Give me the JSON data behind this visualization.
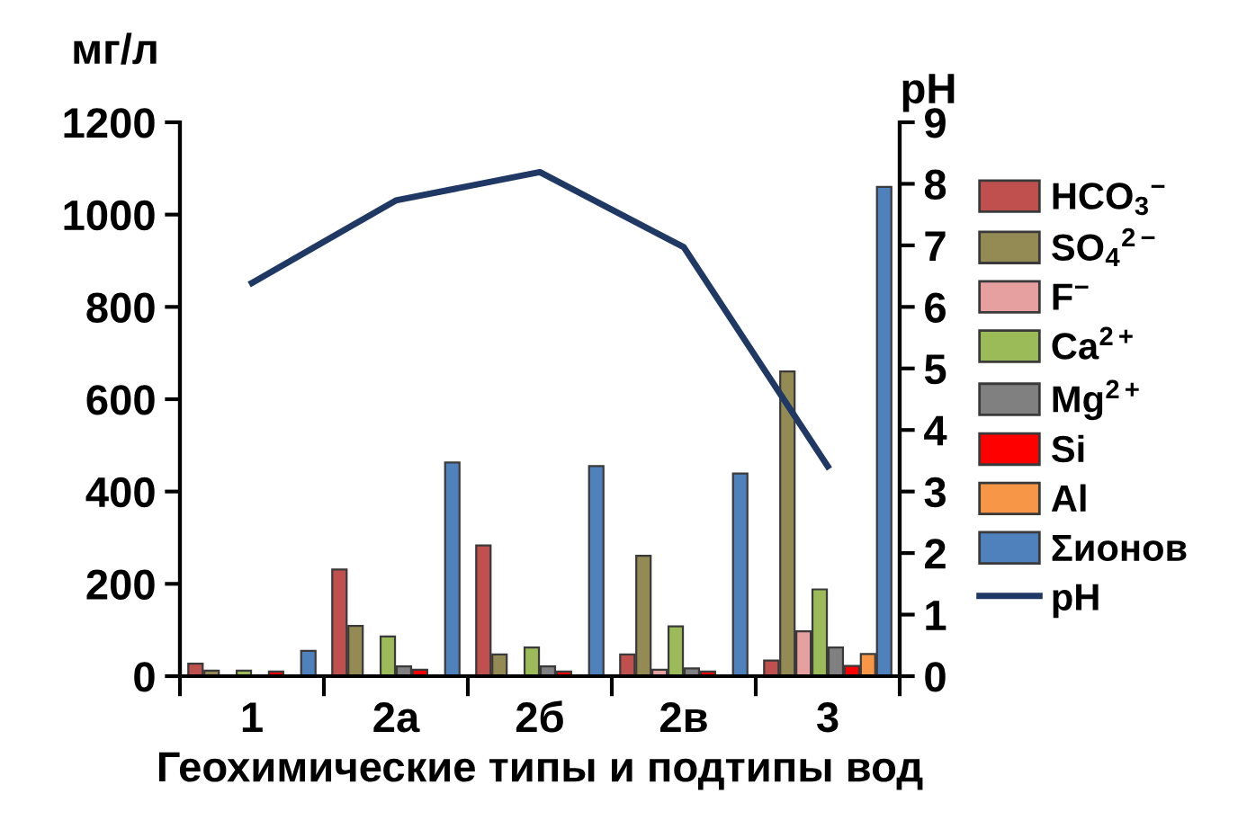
{
  "chart_data": {
    "type": "bar",
    "xlabel": "Геохимические типы и подтипы вод",
    "ylabel": "мг/л",
    "y2label": "pH",
    "categories": [
      "1",
      "2а",
      "2б",
      "2в",
      "3"
    ],
    "series": [
      {
        "name": "HCO$_{3}$$^{−}$",
        "color": "#c0504d",
        "values": [
          27,
          231,
          283,
          47,
          34
        ]
      },
      {
        "name": "SO$_{4}$$^{2−}$",
        "color": "#948a54",
        "values": [
          12,
          109,
          47,
          261,
          660
        ]
      },
      {
        "name": "F$^{−}$",
        "color": "#e6a0a0",
        "values": [
          null,
          null,
          null,
          14,
          97
        ]
      },
      {
        "name": "Ca$^{2+}$",
        "color": "#9bbb59",
        "values": [
          12,
          86,
          62,
          108,
          188
        ]
      },
      {
        "name": "Mg$^{2+}$",
        "color": "#808080",
        "values": [
          null,
          21,
          21,
          17,
          62
        ]
      },
      {
        "name": "Si",
        "color": "#ff0000",
        "values": [
          10,
          14,
          10,
          10,
          22
        ]
      },
      {
        "name": "Al",
        "color": "#f79646",
        "values": [
          null,
          null,
          null,
          null,
          48
        ]
      },
      {
        "name": "Σионов",
        "color": "#4f81bd",
        "values": [
          55,
          463,
          455,
          439,
          1060
        ]
      },
      {
        "name": "pH",
        "type": "line",
        "axis": "y2",
        "color": "#1f3864",
        "values": [
          6.39,
          7.73,
          8.19,
          6.97,
          3.41
        ]
      }
    ],
    "ylim": [
      0,
      1200
    ],
    "yticks": [
      0,
      200,
      400,
      600,
      800,
      1000,
      1200
    ],
    "y2lim": [
      0,
      9
    ],
    "y2ticks": [
      0,
      1,
      2,
      3,
      4,
      5,
      6,
      7,
      8,
      9
    ],
    "grid": false,
    "legend": "right"
  }
}
